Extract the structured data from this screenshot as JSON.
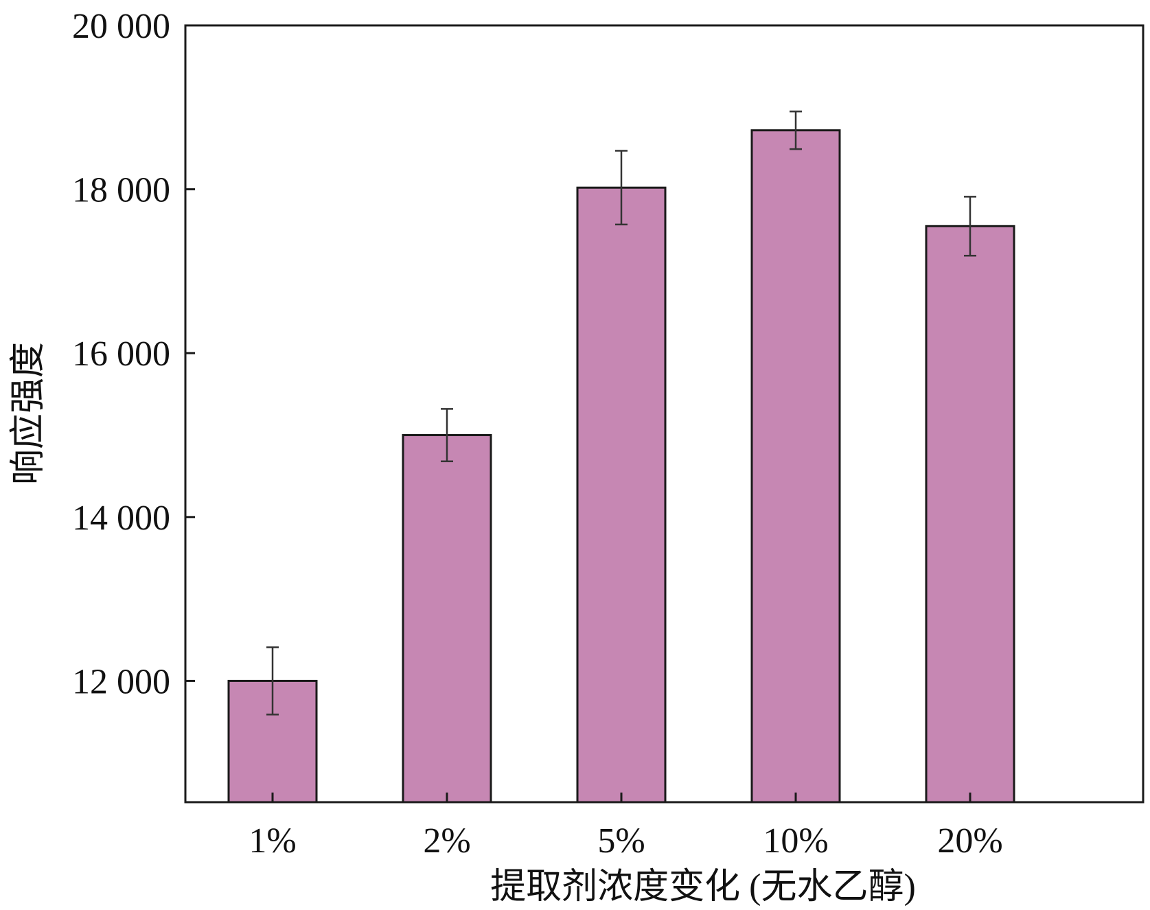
{
  "chart_data": {
    "type": "bar",
    "xlabel": "提取剂浓度变化 (无水乙醇)",
    "ylabel": "响应强度",
    "categories": [
      "1%",
      "2%",
      "5%",
      "10%",
      "20%"
    ],
    "series": [
      {
        "values": [
          12000,
          15000,
          18020,
          18720,
          17550
        ],
        "error": [
          410,
          320,
          450,
          230,
          360
        ]
      }
    ],
    "ylim": [
      10520,
      20000
    ],
    "yticks": [
      12000,
      14000,
      16000,
      18000,
      20000
    ],
    "ytick_labels": [
      "12 000",
      "14 000",
      "16 000",
      "18 000",
      "20 000"
    ],
    "grid": false,
    "legend": "none",
    "colors": {
      "bar_fill": "#c687b3",
      "bar_edge": "#1a1a1a",
      "axis": "#1a1a1a",
      "error_bar": "#333333"
    }
  }
}
